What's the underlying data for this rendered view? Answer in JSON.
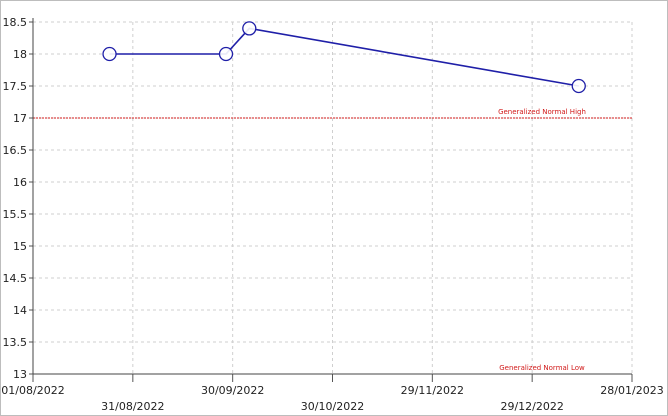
{
  "chart_data": {
    "type": "line",
    "title": "",
    "xlabel": "",
    "ylabel": "",
    "x_axis": {
      "kind": "date",
      "range": [
        "01/08/2022",
        "28/01/2023"
      ],
      "ticks_upper": [
        "01/08/2022",
        "30/09/2022",
        "29/11/2022",
        "28/01/2023"
      ],
      "ticks_lower": [
        "31/08/2022",
        "30/10/2022",
        "29/12/2022"
      ]
    },
    "y_axis": {
      "range": [
        13,
        18.5
      ],
      "ticks": [
        "13",
        "13.5",
        "14",
        "14.5",
        "15",
        "15.5",
        "16",
        "16.5",
        "17",
        "17.5",
        "18",
        "18.5"
      ]
    },
    "grid": true,
    "series": [
      {
        "color": "#1f1fa8",
        "marker": "open-circle",
        "points": [
          {
            "x": "24/08/2022",
            "y": 18
          },
          {
            "x": "28/09/2022",
            "y": 18
          },
          {
            "x": "05/10/2022",
            "y": 18.4
          },
          {
            "x": "12/01/2023",
            "y": 17.5
          }
        ]
      }
    ],
    "reference_lines": [
      {
        "label": "Generalized Normal High",
        "y": 17,
        "color": "#d11a1a"
      },
      {
        "label": "Generalized Normal Low",
        "y": 13,
        "color": "#d11a1a"
      }
    ]
  }
}
